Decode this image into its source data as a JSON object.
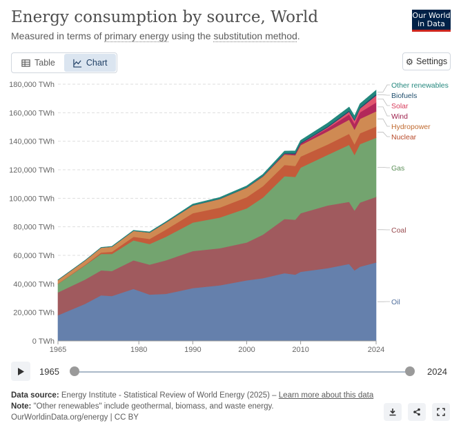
{
  "header": {
    "title": "Energy consumption by source, World",
    "subtitle_pre": "Measured in terms of ",
    "subtitle_link1": "primary energy",
    "subtitle_mid": " using the ",
    "subtitle_link2": "substitution method",
    "subtitle_post": ".",
    "logo_line1": "Our World",
    "logo_line2": "in Data"
  },
  "tabs": [
    {
      "label": "Table",
      "icon": "table-icon"
    },
    {
      "label": "Chart",
      "icon": "chart-icon"
    }
  ],
  "settings_label": "Settings",
  "colors": {
    "Oil": "#6580ac",
    "Coal": "#a05a5e",
    "Gas": "#73a46f",
    "Nuclear": "#c45b3a",
    "Hydropower": "#cf8a53",
    "Wind": "#b2285a",
    "Solar": "#e2556e",
    "Biofuels": "#1f4e6d",
    "Other renewables": "#23877d"
  },
  "chart_data": {
    "type": "area",
    "stacked": true,
    "title": "Energy consumption by source, World",
    "y_tick_labels": [
      "0 TWh",
      "20,000 TWh",
      "40,000 TWh",
      "60,000 TWh",
      "80,000 TWh",
      "100,000 TWh",
      "120,000 TWh",
      "140,000 TWh",
      "160,000 TWh",
      "180,000 TWh"
    ],
    "x_tick_labels": [
      "1965",
      "1980",
      "1990",
      "2000",
      "2010",
      "2024"
    ],
    "ylim": [
      0,
      180000
    ],
    "grid": true,
    "legend_placement": "right, inline labels",
    "x": [
      1965,
      1970,
      1973,
      1975,
      1979,
      1982,
      1985,
      1990,
      1995,
      2000,
      2003,
      2007,
      2009,
      2010,
      2015,
      2019,
      2020,
      2021,
      2024
    ],
    "series": [
      {
        "name": "Oil",
        "values": [
          18000,
          26000,
          32000,
          31500,
          36500,
          32500,
          33000,
          37000,
          39000,
          42500,
          44000,
          47500,
          46500,
          48500,
          51000,
          54000,
          49500,
          52000,
          55000
        ]
      },
      {
        "name": "Coal",
        "values": [
          16000,
          17000,
          17500,
          17500,
          20000,
          21000,
          23500,
          26000,
          26000,
          26500,
          30500,
          38000,
          38500,
          41000,
          44000,
          43500,
          42000,
          45000,
          46000
        ]
      },
      {
        "name": "Gas",
        "values": [
          6000,
          10000,
          11500,
          12000,
          14000,
          14500,
          16500,
          20000,
          21500,
          24000,
          26000,
          30000,
          30000,
          32000,
          35500,
          40000,
          39000,
          41000,
          41500
        ]
      },
      {
        "name": "Nuclear",
        "values": [
          200,
          300,
          1000,
          1500,
          2500,
          3500,
          5000,
          6500,
          7000,
          7800,
          8000,
          7900,
          7700,
          7800,
          7200,
          7700,
          7400,
          7600,
          7800
        ]
      },
      {
        "name": "Hydropower",
        "values": [
          2500,
          3000,
          3400,
          3600,
          4200,
          4500,
          5000,
          5500,
          6000,
          6600,
          6700,
          7300,
          7500,
          8000,
          9200,
          10000,
          10300,
          10100,
          10700
        ]
      },
      {
        "name": "Wind",
        "values": [
          0,
          0,
          0,
          0,
          0,
          0,
          0,
          0,
          50,
          100,
          200,
          500,
          800,
          950,
          2200,
          3700,
          4100,
          4600,
          6200
        ]
      },
      {
        "name": "Solar",
        "values": [
          0,
          0,
          0,
          0,
          0,
          0,
          0,
          0,
          0,
          0,
          0,
          10,
          50,
          80,
          650,
          1800,
          2200,
          2600,
          4900
        ]
      },
      {
        "name": "Biofuels",
        "values": [
          0,
          0,
          0,
          0,
          0,
          30,
          60,
          80,
          100,
          100,
          150,
          400,
          550,
          600,
          750,
          850,
          800,
          900,
          1100
        ]
      },
      {
        "name": "Other renewables",
        "values": [
          100,
          150,
          200,
          250,
          350,
          450,
          550,
          850,
          1000,
          1150,
          1250,
          1500,
          1650,
          1750,
          2200,
          2450,
          2500,
          2500,
          2600
        ]
      }
    ]
  },
  "timeline": {
    "start": "1965",
    "end": "2024"
  },
  "footer": {
    "source_label": "Data source:",
    "source_text": "Energy Institute - Statistical Review of World Energy (2025) – ",
    "learn_more": "Learn more about this data",
    "note_label": "Note:",
    "note_text": "\"Other renewables\" include geothermal, biomass, and waste energy.",
    "credit": "OurWorldinData.org/energy | CC BY"
  }
}
